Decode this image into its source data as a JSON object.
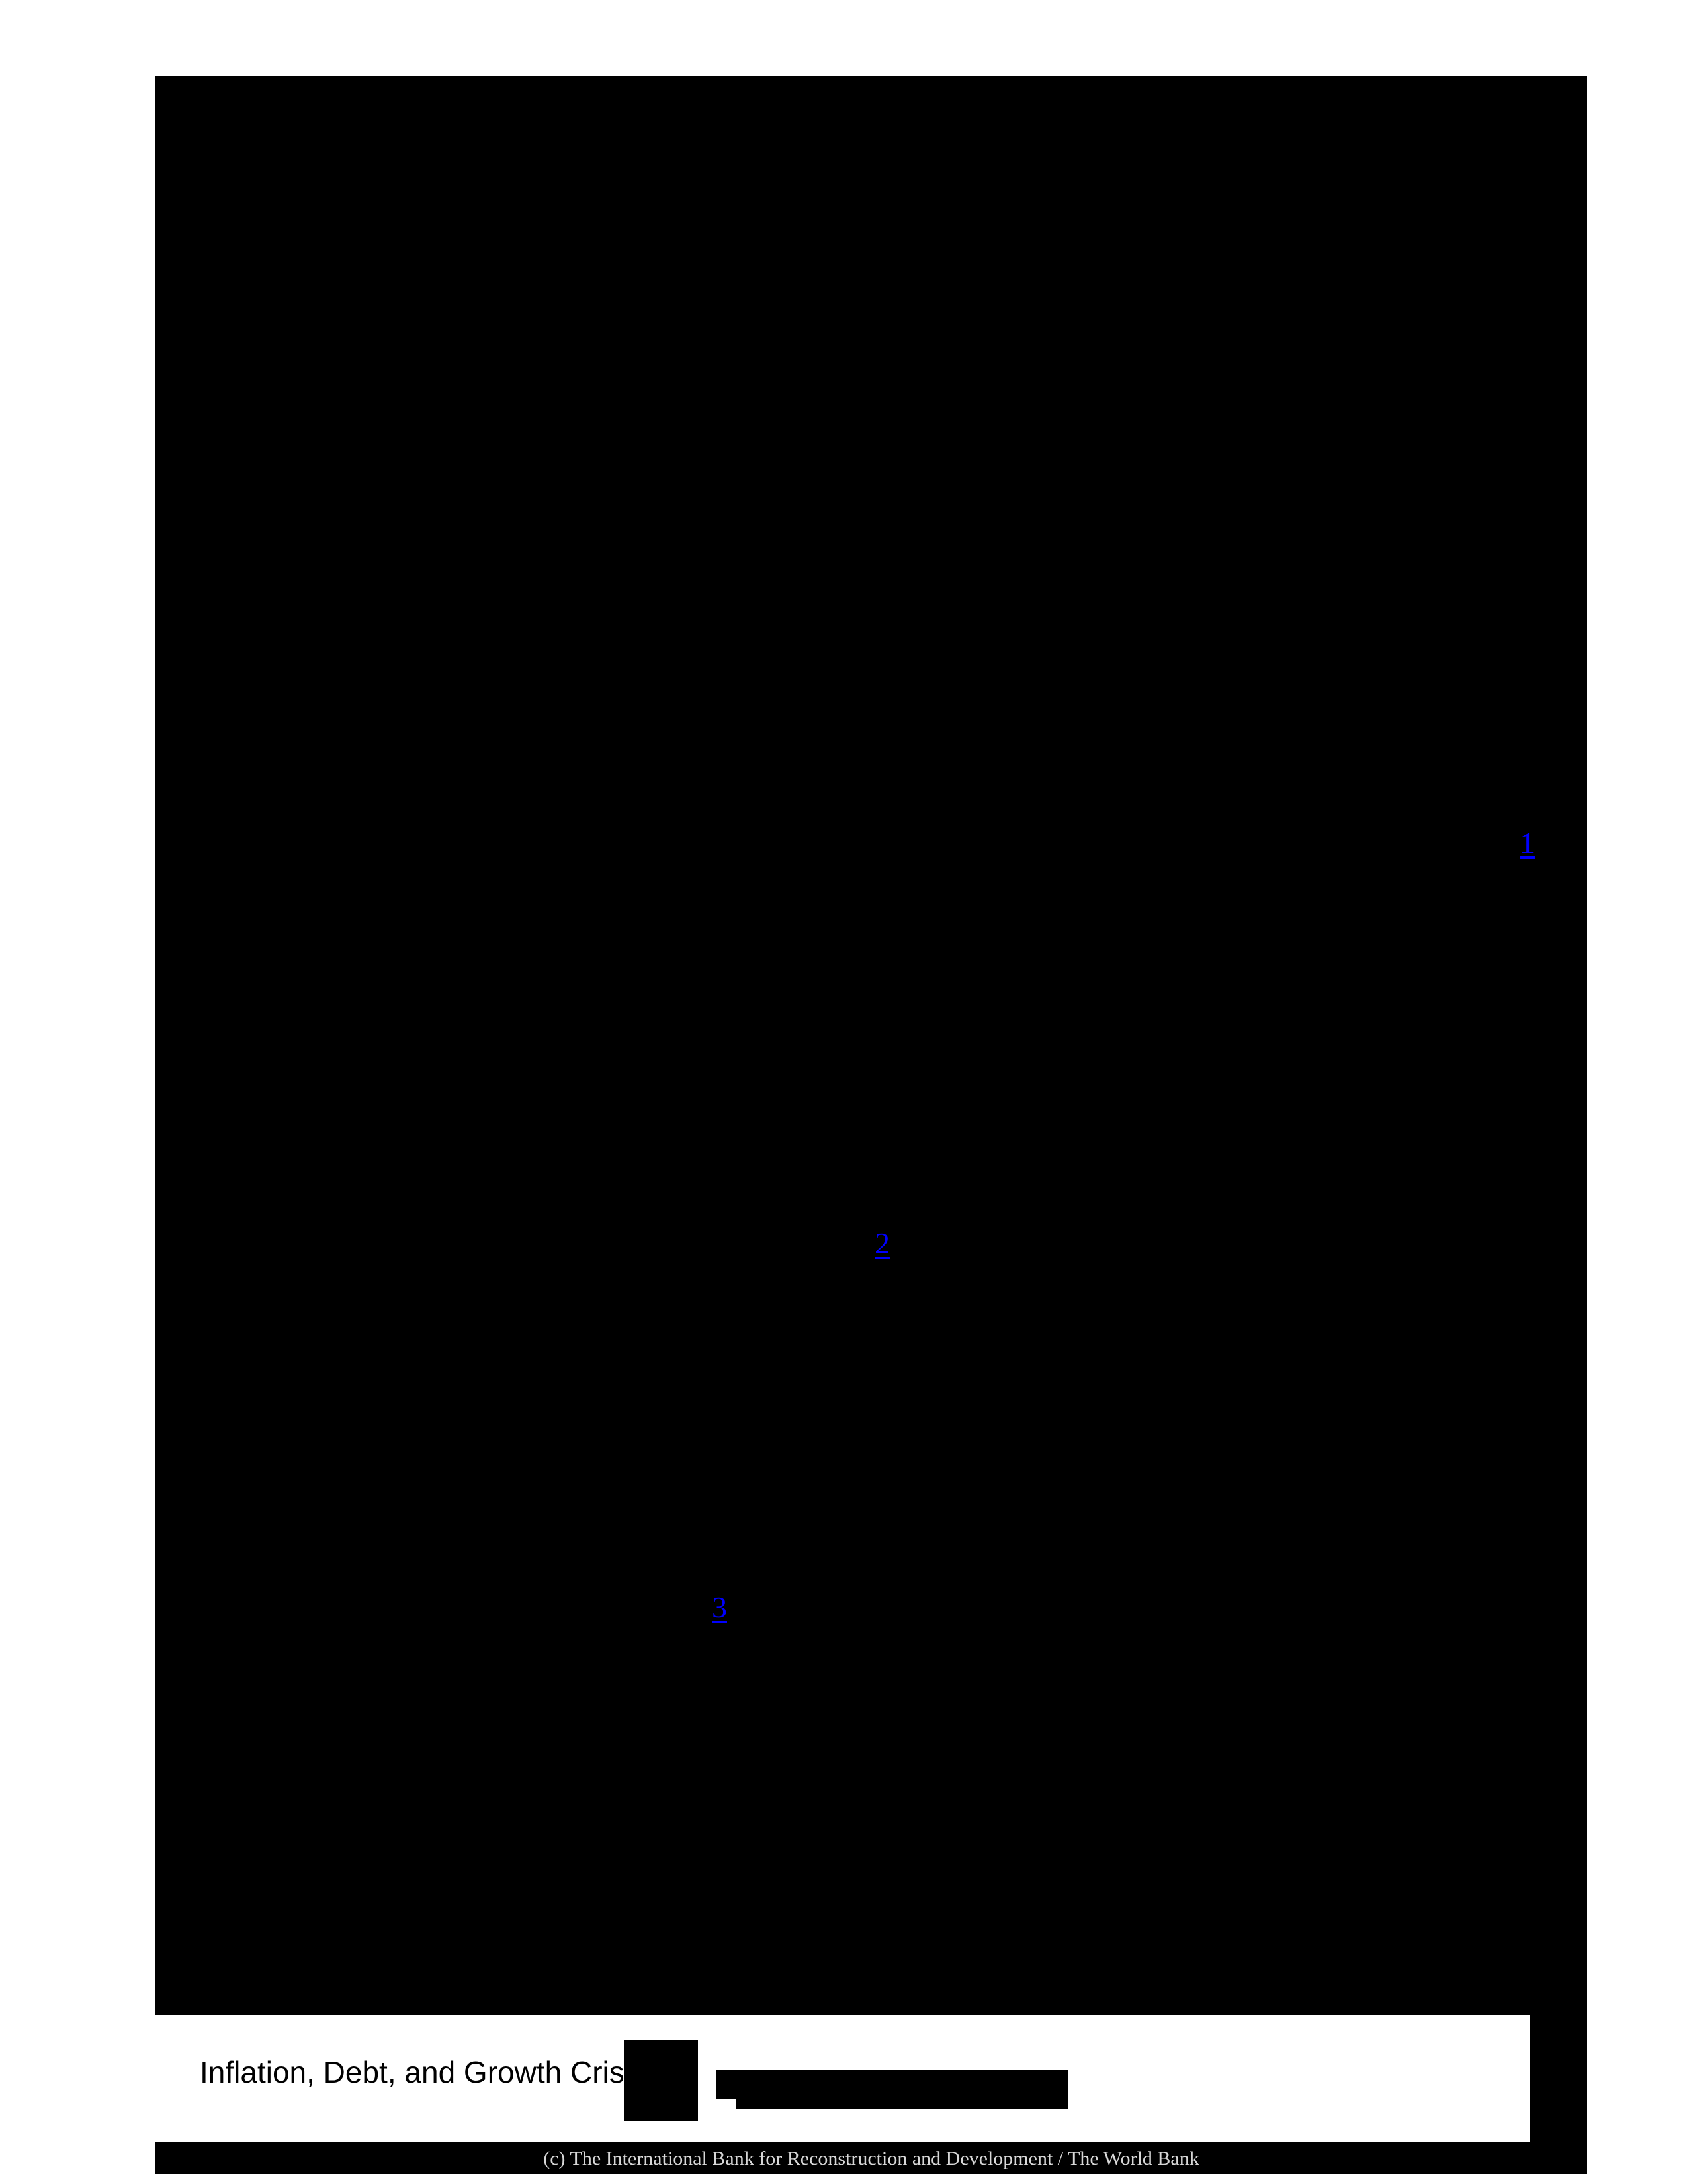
{
  "footnote_links": [
    {
      "label": "1"
    },
    {
      "label": "2"
    },
    {
      "label": "3"
    }
  ],
  "title_band": {
    "visible_title": "Inflation, Debt, and Growth Cris"
  },
  "footer": {
    "copyright": "(c) The International Bank for Reconstruction and Development / The World Bank"
  },
  "colors": {
    "page_background": "#ffffff",
    "content_black": "#000000",
    "link_blue": "#0000fe",
    "footer_text": "#d8d8d8",
    "title_text": "#000000"
  }
}
